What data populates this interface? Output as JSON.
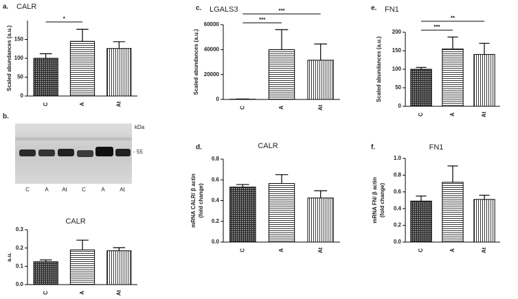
{
  "blot": {
    "panel": "b.",
    "lane_labels": [
      "C",
      "A",
      "At",
      "C",
      "A",
      "At"
    ],
    "unit": "kDa",
    "marker": "- 55"
  },
  "chart_data": [
    {
      "type": "bar",
      "panel": "a.",
      "title": "CALR",
      "y_label": [
        "Scaled abundances (a.u.)"
      ],
      "categories": [
        "C",
        "A",
        "At"
      ],
      "values": [
        100,
        145,
        126
      ],
      "errors": [
        12,
        32,
        18
      ],
      "ylim": [
        0,
        200
      ],
      "yticks": [
        0,
        50,
        100,
        150
      ],
      "significance": [
        {
          "label": "*",
          "pair": [
            0,
            1
          ]
        }
      ]
    },
    {
      "type": "bar",
      "title": "CALR",
      "y_label": [
        "a.u."
      ],
      "categories": [
        "C",
        "A",
        "At"
      ],
      "values": [
        0.125,
        0.19,
        0.185
      ],
      "errors": [
        0.01,
        0.053,
        0.017
      ],
      "ylim": [
        0,
        0.3
      ],
      "yticks": [
        {
          "value": 0,
          "label": "0.0"
        },
        0.1,
        0.2,
        0.3
      ]
    },
    {
      "type": "bar",
      "panel": "c.",
      "title": "LGALS3",
      "y_label": [
        "Scaled abundances (a.u.)"
      ],
      "categories": [
        "C",
        "A",
        "At"
      ],
      "values": [
        200,
        40000,
        31500
      ],
      "errors": [
        150,
        16000,
        13000
      ],
      "ylim": [
        0,
        60000
      ],
      "yticks": [
        0,
        20000,
        40000,
        60000
      ],
      "significance": [
        {
          "label": "***",
          "pair": [
            0,
            1
          ]
        },
        {
          "label": "***",
          "pair": [
            0,
            2
          ]
        }
      ]
    },
    {
      "type": "bar",
      "panel": "d.",
      "title": "CALR",
      "y_label": [
        "mRNA CALR/ β actin",
        "(fold change)"
      ],
      "categories": [
        "C",
        "A",
        "At"
      ],
      "values": [
        0.53,
        0.565,
        0.425
      ],
      "errors": [
        0.025,
        0.085,
        0.07
      ],
      "ylim": [
        0,
        0.8
      ],
      "yticks": [
        {
          "value": 0,
          "label": "0.0"
        },
        0.2,
        0.4,
        0.6,
        0.8
      ]
    },
    {
      "type": "bar",
      "panel": "e.",
      "title": "FN1",
      "y_label": [
        "Scaled abundances (a.u.)"
      ],
      "categories": [
        "C",
        "A",
        "At"
      ],
      "values": [
        100,
        155,
        140
      ],
      "errors": [
        5,
        32,
        30
      ],
      "ylim": [
        0,
        200
      ],
      "yticks": [
        0,
        50,
        100,
        150,
        200
      ],
      "significance": [
        {
          "label": "***",
          "pair": [
            0,
            1
          ]
        },
        {
          "label": "**",
          "pair": [
            0,
            2
          ]
        }
      ]
    },
    {
      "type": "bar",
      "panel": "f.",
      "title": "FN1",
      "y_label": [
        "mRNA FN/ β actin",
        "(fold change)"
      ],
      "categories": [
        "C",
        "A",
        "At"
      ],
      "values": [
        0.49,
        0.715,
        0.51
      ],
      "errors": [
        0.06,
        0.195,
        0.05
      ],
      "ylim": [
        0,
        1.0
      ],
      "yticks": [
        {
          "value": 0,
          "label": "0.0"
        },
        0.2,
        0.4,
        0.6,
        0.8,
        {
          "value": 1,
          "label": "1.0"
        }
      ]
    }
  ]
}
